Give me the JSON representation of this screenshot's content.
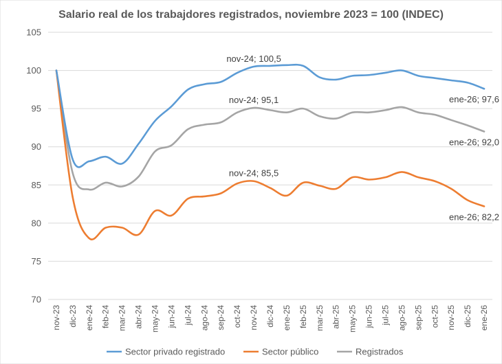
{
  "chart_data": {
    "type": "line",
    "title": "Salario real de los trabajdores registrados, noviembre 2023 = 100 (INDEC)",
    "xlabel": "",
    "ylabel": "",
    "ylim": [
      70,
      105
    ],
    "yticks": [
      70,
      75,
      80,
      85,
      90,
      95,
      100,
      105
    ],
    "grid": true,
    "legend_position": "bottom",
    "categories": [
      "nov-23",
      "dic-23",
      "ene-24",
      "feb-24",
      "mar-24",
      "abr-24",
      "may-24",
      "jun-24",
      "jul-24",
      "ago-24",
      "sep-24",
      "oct-24",
      "nov-24",
      "dic-24",
      "ene-25",
      "feb-25",
      "mar-25",
      "abr-25",
      "may-25",
      "jun-25",
      "jul-25",
      "ago-25",
      "sep-25",
      "oct-25",
      "nov-25",
      "dic-25",
      "ene-26"
    ],
    "series": [
      {
        "name": "Sector privado registrado",
        "color": "#5b9bd5",
        "values": [
          100.0,
          88.3,
          88.1,
          88.7,
          87.8,
          90.4,
          93.4,
          95.3,
          97.5,
          98.2,
          98.5,
          99.7,
          100.5,
          100.6,
          100.7,
          100.6,
          99.1,
          98.8,
          99.3,
          99.4,
          99.7,
          100.0,
          99.3,
          99.0,
          98.7,
          98.4,
          97.6
        ]
      },
      {
        "name": "Sector público",
        "color": "#ed7d31",
        "values": [
          100.0,
          83.3,
          78.0,
          79.4,
          79.4,
          78.5,
          81.6,
          81.0,
          83.2,
          83.5,
          83.9,
          85.2,
          85.5,
          84.6,
          83.6,
          85.3,
          84.9,
          84.5,
          86.0,
          85.7,
          86.0,
          86.7,
          86.0,
          85.5,
          84.5,
          83.0,
          82.2
        ]
      },
      {
        "name": "Registrados",
        "color": "#a5a5a5",
        "values": [
          100.0,
          86.5,
          84.4,
          85.3,
          84.8,
          86.1,
          89.4,
          90.2,
          92.3,
          92.9,
          93.2,
          94.5,
          95.1,
          94.8,
          94.5,
          95.0,
          94.0,
          93.7,
          94.5,
          94.5,
          94.8,
          95.2,
          94.5,
          94.2,
          93.5,
          92.8,
          92.0
        ]
      }
    ],
    "annotations": [
      {
        "series": 0,
        "index": 12,
        "text": "nov-24; 100,5",
        "position": "above"
      },
      {
        "series": 0,
        "index": 26,
        "text": "ene-26; 97,6",
        "position": "below"
      },
      {
        "series": 2,
        "index": 12,
        "text": "nov-24; 95,1",
        "position": "above"
      },
      {
        "series": 2,
        "index": 26,
        "text": "ene-26; 92,0",
        "position": "below"
      },
      {
        "series": 1,
        "index": 12,
        "text": "nov-24; 85,5",
        "position": "above"
      },
      {
        "series": 1,
        "index": 26,
        "text": "ene-26; 82,2",
        "position": "below"
      }
    ]
  }
}
